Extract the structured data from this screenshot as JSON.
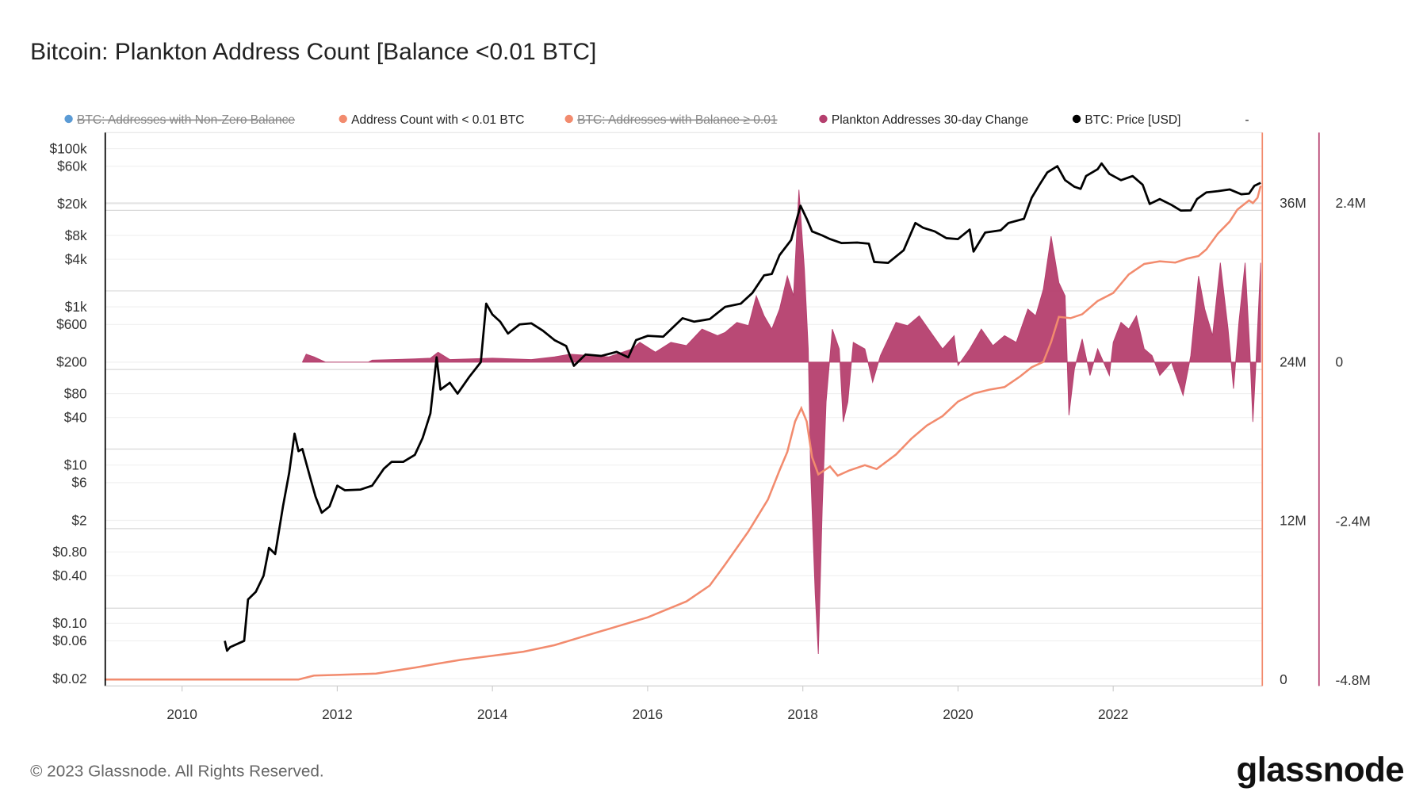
{
  "title": "Bitcoin: Plankton Address Count [Balance <0.01 BTC]",
  "footer": "© 2023 Glassnode. All Rights Reserved.",
  "logo": "glassnode",
  "legend": [
    {
      "label": "BTC: Addresses with Non-Zero Balance",
      "color": "#5b9bd5",
      "hidden": true
    },
    {
      "label": "Address Count with < 0.01 BTC",
      "color": "#f28b6e",
      "hidden": false
    },
    {
      "label": "BTC: Addresses with Balance ≥ 0.01",
      "color": "#f28b6e",
      "hidden": true
    },
    {
      "label": "Plankton Addresses 30-day Change",
      "color": "#b53f6e",
      "hidden": false
    },
    {
      "label": "BTC: Price [USD]",
      "color": "#000000",
      "hidden": false
    },
    {
      "label": "-",
      "color": "",
      "hidden": false
    }
  ],
  "chart_data": {
    "type": "line",
    "x_ticks": [
      "2010",
      "2012",
      "2014",
      "2016",
      "2018",
      "2020",
      "2022"
    ],
    "xlim": [
      2009.0,
      2023.9
    ],
    "y_left": {
      "scale": "log",
      "ticks": [
        {
          "v": 100000,
          "l": "$100k"
        },
        {
          "v": 60000,
          "l": "$60k"
        },
        {
          "v": 20000,
          "l": "$20k"
        },
        {
          "v": 8000,
          "l": "$8k"
        },
        {
          "v": 4000,
          "l": "$4k"
        },
        {
          "v": 1000,
          "l": "$1k"
        },
        {
          "v": 600,
          "l": "$600"
        },
        {
          "v": 200,
          "l": "$200"
        },
        {
          "v": 80,
          "l": "$80"
        },
        {
          "v": 40,
          "l": "$40"
        },
        {
          "v": 10,
          "l": "$10"
        },
        {
          "v": 6,
          "l": "$6"
        },
        {
          "v": 2,
          "l": "$2"
        },
        {
          "v": 0.8,
          "l": "$0.80"
        },
        {
          "v": 0.4,
          "l": "$0.40"
        },
        {
          "v": 0.1,
          "l": "$0.10"
        },
        {
          "v": 0.06,
          "l": "$0.06"
        },
        {
          "v": 0.02,
          "l": "$0.02"
        }
      ]
    },
    "y_right1": {
      "ticks": [
        {
          "v": 36,
          "l": "36M"
        },
        {
          "v": 24,
          "l": "24M"
        },
        {
          "v": 12,
          "l": "12M"
        },
        {
          "v": 0,
          "l": "0"
        }
      ],
      "unit": "M"
    },
    "y_right2": {
      "ticks": [
        {
          "v": 2.4,
          "l": "2.4M"
        },
        {
          "v": 0,
          "l": "0"
        },
        {
          "v": -2.4,
          "l": "-2.4M"
        },
        {
          "v": -4.8,
          "l": "-4.8M"
        }
      ],
      "unit": "M"
    },
    "grid": true,
    "legend_position": "top",
    "series": [
      {
        "name": "BTC: Price [USD]",
        "axis": "left",
        "color": "#000000",
        "kind": "line",
        "points": [
          [
            2010.55,
            0.06
          ],
          [
            2010.58,
            0.045
          ],
          [
            2010.62,
            0.05
          ],
          [
            2010.8,
            0.06
          ],
          [
            2010.85,
            0.2
          ],
          [
            2010.95,
            0.25
          ],
          [
            2011.05,
            0.4
          ],
          [
            2011.12,
            0.9
          ],
          [
            2011.2,
            0.75
          ],
          [
            2011.3,
            3
          ],
          [
            2011.38,
            8
          ],
          [
            2011.45,
            25
          ],
          [
            2011.5,
            15
          ],
          [
            2011.55,
            16
          ],
          [
            2011.65,
            7
          ],
          [
            2011.72,
            4
          ],
          [
            2011.8,
            2.5
          ],
          [
            2011.9,
            3
          ],
          [
            2012.0,
            5.5
          ],
          [
            2012.1,
            4.8
          ],
          [
            2012.3,
            4.9
          ],
          [
            2012.45,
            5.5
          ],
          [
            2012.6,
            9
          ],
          [
            2012.7,
            11
          ],
          [
            2012.85,
            11
          ],
          [
            2013.0,
            13.5
          ],
          [
            2013.1,
            22
          ],
          [
            2013.2,
            45
          ],
          [
            2013.28,
            230
          ],
          [
            2013.33,
            90
          ],
          [
            2013.45,
            110
          ],
          [
            2013.55,
            80
          ],
          [
            2013.7,
            130
          ],
          [
            2013.85,
            200
          ],
          [
            2013.92,
            1100
          ],
          [
            2014.0,
            800
          ],
          [
            2014.1,
            650
          ],
          [
            2014.2,
            460
          ],
          [
            2014.35,
            600
          ],
          [
            2014.5,
            620
          ],
          [
            2014.65,
            500
          ],
          [
            2014.8,
            380
          ],
          [
            2014.95,
            320
          ],
          [
            2015.05,
            180
          ],
          [
            2015.2,
            250
          ],
          [
            2015.4,
            240
          ],
          [
            2015.6,
            270
          ],
          [
            2015.75,
            230
          ],
          [
            2015.85,
            380
          ],
          [
            2016.0,
            430
          ],
          [
            2016.2,
            420
          ],
          [
            2016.45,
            720
          ],
          [
            2016.6,
            650
          ],
          [
            2016.8,
            700
          ],
          [
            2017.0,
            1000
          ],
          [
            2017.2,
            1100
          ],
          [
            2017.35,
            1500
          ],
          [
            2017.5,
            2500
          ],
          [
            2017.6,
            2600
          ],
          [
            2017.7,
            4500
          ],
          [
            2017.85,
            7000
          ],
          [
            2017.97,
            19000
          ],
          [
            2018.05,
            13000
          ],
          [
            2018.12,
            9000
          ],
          [
            2018.25,
            8000
          ],
          [
            2018.35,
            7200
          ],
          [
            2018.5,
            6400
          ],
          [
            2018.7,
            6500
          ],
          [
            2018.85,
            6300
          ],
          [
            2018.92,
            3700
          ],
          [
            2019.1,
            3600
          ],
          [
            2019.3,
            5200
          ],
          [
            2019.45,
            11500
          ],
          [
            2019.55,
            10000
          ],
          [
            2019.7,
            9000
          ],
          [
            2019.85,
            7400
          ],
          [
            2020.0,
            7200
          ],
          [
            2020.15,
            9500
          ],
          [
            2020.2,
            5000
          ],
          [
            2020.35,
            8700
          ],
          [
            2020.55,
            9300
          ],
          [
            2020.65,
            11500
          ],
          [
            2020.85,
            13000
          ],
          [
            2020.95,
            24000
          ],
          [
            2021.05,
            35000
          ],
          [
            2021.15,
            50000
          ],
          [
            2021.28,
            60000
          ],
          [
            2021.38,
            40000
          ],
          [
            2021.5,
            33000
          ],
          [
            2021.58,
            31000
          ],
          [
            2021.65,
            45000
          ],
          [
            2021.8,
            55000
          ],
          [
            2021.85,
            65000
          ],
          [
            2021.95,
            48000
          ],
          [
            2022.1,
            40000
          ],
          [
            2022.25,
            45000
          ],
          [
            2022.38,
            35000
          ],
          [
            2022.47,
            20000
          ],
          [
            2022.6,
            23000
          ],
          [
            2022.75,
            19500
          ],
          [
            2022.87,
            16500
          ],
          [
            2023.0,
            16600
          ],
          [
            2023.08,
            23000
          ],
          [
            2023.2,
            28000
          ],
          [
            2023.35,
            29000
          ],
          [
            2023.5,
            30500
          ],
          [
            2023.65,
            26500
          ],
          [
            2023.75,
            27000
          ],
          [
            2023.82,
            34000
          ],
          [
            2023.9,
            37000
          ]
        ]
      },
      {
        "name": "Address Count with < 0.01 BTC",
        "axis": "right1",
        "color": "#f28b6e",
        "kind": "line",
        "points": [
          [
            2009.0,
            0
          ],
          [
            2011.5,
            0
          ],
          [
            2011.7,
            0.3
          ],
          [
            2012.0,
            0.35
          ],
          [
            2012.5,
            0.45
          ],
          [
            2013.0,
            0.9
          ],
          [
            2013.3,
            1.2
          ],
          [
            2013.6,
            1.5
          ],
          [
            2014.0,
            1.8
          ],
          [
            2014.4,
            2.1
          ],
          [
            2014.8,
            2.6
          ],
          [
            2015.2,
            3.3
          ],
          [
            2015.6,
            4.0
          ],
          [
            2016.0,
            4.7
          ],
          [
            2016.5,
            5.9
          ],
          [
            2016.8,
            7.1
          ],
          [
            2017.0,
            8.7
          ],
          [
            2017.3,
            11.2
          ],
          [
            2017.55,
            13.6
          ],
          [
            2017.7,
            15.8
          ],
          [
            2017.8,
            17.2
          ],
          [
            2017.9,
            19.5
          ],
          [
            2017.98,
            20.5
          ],
          [
            2018.05,
            19.5
          ],
          [
            2018.12,
            16.8
          ],
          [
            2018.2,
            15.5
          ],
          [
            2018.35,
            16.1
          ],
          [
            2018.45,
            15.4
          ],
          [
            2018.6,
            15.8
          ],
          [
            2018.8,
            16.2
          ],
          [
            2018.95,
            15.9
          ],
          [
            2019.2,
            17.0
          ],
          [
            2019.4,
            18.2
          ],
          [
            2019.6,
            19.2
          ],
          [
            2019.8,
            19.9
          ],
          [
            2020.0,
            21.0
          ],
          [
            2020.2,
            21.6
          ],
          [
            2020.4,
            21.9
          ],
          [
            2020.6,
            22.1
          ],
          [
            2020.8,
            22.9
          ],
          [
            2020.95,
            23.6
          ],
          [
            2021.1,
            24.0
          ],
          [
            2021.2,
            25.5
          ],
          [
            2021.3,
            27.4
          ],
          [
            2021.45,
            27.3
          ],
          [
            2021.6,
            27.6
          ],
          [
            2021.8,
            28.6
          ],
          [
            2022.0,
            29.2
          ],
          [
            2022.2,
            30.6
          ],
          [
            2022.4,
            31.4
          ],
          [
            2022.6,
            31.6
          ],
          [
            2022.8,
            31.5
          ],
          [
            2022.95,
            31.8
          ],
          [
            2023.1,
            32.0
          ],
          [
            2023.2,
            32.5
          ],
          [
            2023.35,
            33.7
          ],
          [
            2023.5,
            34.6
          ],
          [
            2023.6,
            35.5
          ],
          [
            2023.75,
            36.2
          ],
          [
            2023.8,
            36.0
          ],
          [
            2023.86,
            36.4
          ],
          [
            2023.9,
            37.3
          ]
        ]
      },
      {
        "name": "Plankton Addresses 30-day Change",
        "axis": "right2",
        "color": "#b53f6e",
        "kind": "area",
        "points": [
          [
            2011.55,
            0
          ],
          [
            2011.6,
            0.12
          ],
          [
            2011.7,
            0.08
          ],
          [
            2011.85,
            0
          ],
          [
            2012.4,
            0
          ],
          [
            2012.45,
            0.03
          ],
          [
            2013.0,
            0.05
          ],
          [
            2013.2,
            0.06
          ],
          [
            2013.3,
            0.15
          ],
          [
            2013.45,
            0.04
          ],
          [
            2014.0,
            0.06
          ],
          [
            2014.5,
            0.04
          ],
          [
            2014.8,
            0.08
          ],
          [
            2015.0,
            0.12
          ],
          [
            2015.5,
            0.08
          ],
          [
            2015.8,
            0.2
          ],
          [
            2015.9,
            0.3
          ],
          [
            2016.1,
            0.15
          ],
          [
            2016.3,
            0.3
          ],
          [
            2016.5,
            0.25
          ],
          [
            2016.7,
            0.5
          ],
          [
            2016.9,
            0.4
          ],
          [
            2017.0,
            0.45
          ],
          [
            2017.15,
            0.6
          ],
          [
            2017.3,
            0.55
          ],
          [
            2017.4,
            1.0
          ],
          [
            2017.5,
            0.7
          ],
          [
            2017.6,
            0.5
          ],
          [
            2017.7,
            0.8
          ],
          [
            2017.8,
            1.3
          ],
          [
            2017.88,
            1.0
          ],
          [
            2017.95,
            2.6
          ],
          [
            2018.02,
            1.4
          ],
          [
            2018.07,
            0.2
          ],
          [
            2018.1,
            -1.6
          ],
          [
            2018.16,
            -3.5
          ],
          [
            2018.2,
            -4.4
          ],
          [
            2018.25,
            -2.2
          ],
          [
            2018.3,
            -0.6
          ],
          [
            2018.38,
            0.5
          ],
          [
            2018.47,
            0.2
          ],
          [
            2018.52,
            -0.9
          ],
          [
            2018.58,
            -0.6
          ],
          [
            2018.65,
            0.3
          ],
          [
            2018.8,
            0.2
          ],
          [
            2018.9,
            -0.3
          ],
          [
            2019.0,
            0.1
          ],
          [
            2019.2,
            0.6
          ],
          [
            2019.35,
            0.55
          ],
          [
            2019.5,
            0.7
          ],
          [
            2019.65,
            0.45
          ],
          [
            2019.8,
            0.2
          ],
          [
            2019.95,
            0.4
          ],
          [
            2020.0,
            -0.05
          ],
          [
            2020.15,
            0.2
          ],
          [
            2020.3,
            0.5
          ],
          [
            2020.45,
            0.25
          ],
          [
            2020.6,
            0.4
          ],
          [
            2020.75,
            0.3
          ],
          [
            2020.9,
            0.8
          ],
          [
            2021.0,
            0.7
          ],
          [
            2021.1,
            1.1
          ],
          [
            2021.2,
            1.9
          ],
          [
            2021.3,
            1.2
          ],
          [
            2021.38,
            1.0
          ],
          [
            2021.43,
            -0.8
          ],
          [
            2021.5,
            -0.1
          ],
          [
            2021.6,
            0.35
          ],
          [
            2021.7,
            -0.2
          ],
          [
            2021.8,
            0.2
          ],
          [
            2021.95,
            -0.2
          ],
          [
            2022.0,
            0.3
          ],
          [
            2022.1,
            0.6
          ],
          [
            2022.2,
            0.5
          ],
          [
            2022.3,
            0.7
          ],
          [
            2022.4,
            0.2
          ],
          [
            2022.5,
            0.1
          ],
          [
            2022.6,
            -0.2
          ],
          [
            2022.75,
            0.0
          ],
          [
            2022.9,
            -0.5
          ],
          [
            2023.0,
            0.1
          ],
          [
            2023.1,
            1.3
          ],
          [
            2023.18,
            0.8
          ],
          [
            2023.28,
            0.4
          ],
          [
            2023.38,
            1.5
          ],
          [
            2023.48,
            0.5
          ],
          [
            2023.55,
            -0.4
          ],
          [
            2023.62,
            0.6
          ],
          [
            2023.7,
            1.5
          ],
          [
            2023.76,
            0.2
          ],
          [
            2023.8,
            -0.9
          ],
          [
            2023.84,
            0.0
          ],
          [
            2023.9,
            1.5
          ]
        ]
      }
    ]
  }
}
